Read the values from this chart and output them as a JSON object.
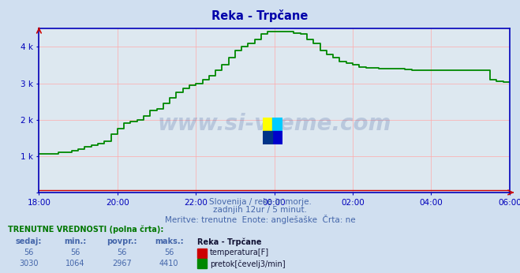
{
  "title": "Reka - Trpčane",
  "bg_color": "#d0dff0",
  "plot_bg_color": "#dde8f0",
  "grid_color": "#ffaaaa",
  "axis_color": "#0000bb",
  "title_color": "#0000aa",
  "text_color": "#4466aa",
  "line_color_pretok": "#008800",
  "line_color_temp": "#cc0000",
  "subtitle1": "Slovenija / reke in morje.",
  "subtitle2": "zadnjih 12ur / 5 minut.",
  "subtitle3": "Meritve: trenutne  Enote: anglešaške  Črta: ne",
  "footer_bold": "TRENUTNE VREDNOSTI (polna črta):",
  "col_headers": [
    "sedaj:",
    "min.:",
    "povpr.:",
    "maks.:"
  ],
  "col_headers_extra": "Reka - Trpčane",
  "temp_values": [
    "56",
    "56",
    "56",
    "56"
  ],
  "pretok_values": [
    "3030",
    "1064",
    "2967",
    "4410"
  ],
  "temp_label": "temperatura[F]",
  "pretok_label": "pretok[čevelj3/min]",
  "watermark_text": "www.si-vreme.com",
  "watermark_color": "#1a3a8a",
  "watermark_alpha": 0.18,
  "xlim": [
    0,
    144
  ],
  "ylim": [
    0,
    4500
  ],
  "xtick_pos": [
    0,
    24,
    48,
    72,
    96,
    120,
    144
  ],
  "xtick_labels": [
    "18:00",
    "20:00",
    "22:00",
    "00:00",
    "02:00",
    "04:00",
    "06:00"
  ],
  "ytick_pos": [
    0,
    1000,
    2000,
    3000,
    4000
  ],
  "ytick_labels": [
    "",
    "1 k",
    "2 k",
    "3 k",
    "4 k"
  ],
  "pretok_x": [
    0,
    2,
    4,
    6,
    8,
    10,
    12,
    14,
    16,
    18,
    20,
    22,
    24,
    26,
    28,
    30,
    32,
    34,
    36,
    38,
    40,
    42,
    44,
    46,
    48,
    50,
    52,
    54,
    56,
    58,
    60,
    62,
    64,
    66,
    68,
    70,
    72,
    74,
    76,
    78,
    80,
    82,
    84,
    86,
    88,
    90,
    92,
    94,
    96,
    98,
    100,
    102,
    104,
    106,
    108,
    110,
    112,
    114,
    116,
    118,
    120,
    122,
    124,
    126,
    128,
    130,
    132,
    134,
    136,
    138,
    140,
    142,
    144
  ],
  "pretok_y": [
    1064,
    1064,
    1064,
    1100,
    1100,
    1150,
    1200,
    1250,
    1300,
    1350,
    1400,
    1600,
    1750,
    1900,
    1950,
    2000,
    2100,
    2250,
    2300,
    2450,
    2600,
    2750,
    2850,
    2950,
    3000,
    3100,
    3200,
    3350,
    3500,
    3700,
    3900,
    4000,
    4100,
    4200,
    4350,
    4410,
    4410,
    4410,
    4410,
    4380,
    4350,
    4200,
    4100,
    3900,
    3800,
    3700,
    3600,
    3550,
    3500,
    3450,
    3430,
    3420,
    3410,
    3400,
    3400,
    3400,
    3380,
    3360,
    3350,
    3350,
    3350,
    3350,
    3350,
    3350,
    3350,
    3350,
    3350,
    3350,
    3350,
    3100,
    3050,
    3030,
    3030
  ],
  "logo_yellow": "#ffff00",
  "logo_cyan": "#00ccff",
  "logo_blue": "#0000cc",
  "logo_darkblue": "#003388"
}
